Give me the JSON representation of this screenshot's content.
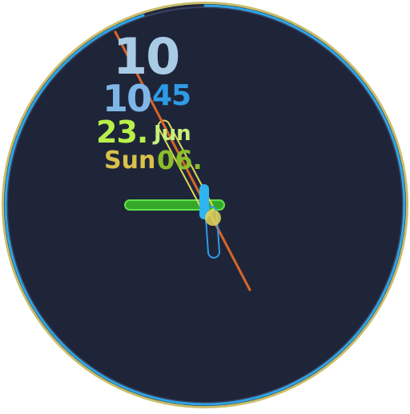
{
  "watch": {
    "big_hour": "10",
    "hour": "10",
    "minute": "45",
    "day": "23.",
    "month": "Jun",
    "weekday": "Sun",
    "week_number": "06."
  },
  "colors": {
    "face": "#1f2539",
    "bezel_gold": "#c9bd6a",
    "ring_blue": "#2ea6e8",
    "hour_hand": "#45d63a",
    "minute_hand": "#e2d85a",
    "second_hand": "#d8662a",
    "sub_hand": "#2f9be6"
  },
  "icons": {
    "hands": "clock-hands-icon"
  },
  "progress": {
    "outer_ring_fraction": 0.95
  }
}
